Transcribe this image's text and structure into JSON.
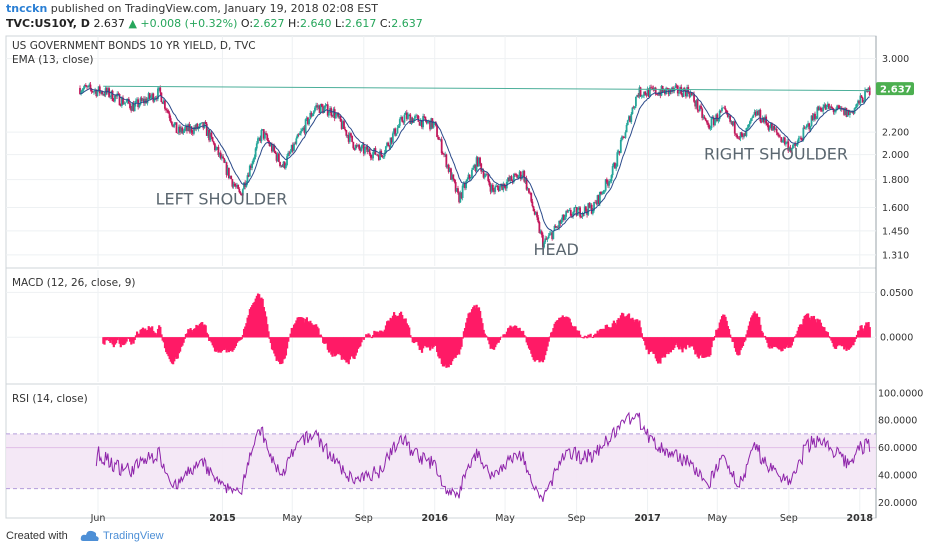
{
  "header": {
    "author": "tncckn",
    "published_text": "published on TradingView.com, January 19, 2018 02:08 EST",
    "symbol": "TVC:US10Y, D",
    "last": "2.637",
    "change": "+0.008 (+0.32%)",
    "o_label": "O:",
    "o_value": "2.627",
    "h_label": "H:",
    "h_value": "2.640",
    "l_label": "L:",
    "l_value": "2.617",
    "c_label": "C:",
    "c_value": "2.637"
  },
  "footer": {
    "created_with": "Created with",
    "brand": "TradingView"
  },
  "colors": {
    "candle_up": "#26a69a",
    "candle_down": "#c2185b",
    "ema": "#2b4a8a",
    "neckline": "#4caf9a",
    "macd": "#ff1a66",
    "rsi": "#8e24aa",
    "rsi_band": "#f3e5f5",
    "price_tag": "#4caf50"
  },
  "chart_data": [
    {
      "type": "candlestick",
      "title": "US GOVERNMENT BONDS 10 YR YIELD, D, TVC",
      "indicator": "EMA (13, close)",
      "y_ticks": [
        "3.000",
        "2.200",
        "2.000",
        "1.800",
        "1.600",
        "1.450",
        "1.310"
      ],
      "y_tick_values": [
        3.0,
        2.2,
        2.0,
        1.8,
        1.6,
        1.45,
        1.31
      ],
      "y_scale": "log",
      "ylim": [
        1.25,
        3.3
      ],
      "last_price_tag": "2.637",
      "x_ticks": [
        "Jun",
        "2015",
        "May",
        "Sep",
        "2016",
        "May",
        "Sep",
        "2017",
        "May",
        "Sep",
        "2018"
      ],
      "x_tick_dates": [
        "2014-06-01",
        "2015-01-01",
        "2015-05-01",
        "2015-09-01",
        "2016-01-01",
        "2016-05-01",
        "2016-09-01",
        "2017-01-01",
        "2017-05-01",
        "2017-09-01",
        "2018-01-01"
      ],
      "approx_close_path": [
        {
          "date": "2014-05-01",
          "close": 2.65
        },
        {
          "date": "2014-06-15",
          "close": 2.6
        },
        {
          "date": "2014-08-01",
          "close": 2.45
        },
        {
          "date": "2014-09-15",
          "close": 2.6
        },
        {
          "date": "2014-10-15",
          "close": 2.2
        },
        {
          "date": "2014-12-01",
          "close": 2.25
        },
        {
          "date": "2015-01-31",
          "close": 1.68
        },
        {
          "date": "2015-03-10",
          "close": 2.2
        },
        {
          "date": "2015-04-15",
          "close": 1.9
        },
        {
          "date": "2015-06-10",
          "close": 2.45
        },
        {
          "date": "2015-07-10",
          "close": 2.4
        },
        {
          "date": "2015-08-20",
          "close": 2.05
        },
        {
          "date": "2015-10-01",
          "close": 2.0
        },
        {
          "date": "2015-11-10",
          "close": 2.35
        },
        {
          "date": "2015-12-31",
          "close": 2.27
        },
        {
          "date": "2016-02-11",
          "close": 1.66
        },
        {
          "date": "2016-03-15",
          "close": 1.95
        },
        {
          "date": "2016-04-10",
          "close": 1.72
        },
        {
          "date": "2016-06-01",
          "close": 1.85
        },
        {
          "date": "2016-07-06",
          "close": 1.37
        },
        {
          "date": "2016-08-15",
          "close": 1.55
        },
        {
          "date": "2016-09-30",
          "close": 1.6
        },
        {
          "date": "2016-11-01",
          "close": 1.85
        },
        {
          "date": "2016-12-15",
          "close": 2.6
        },
        {
          "date": "2017-03-13",
          "close": 2.62
        },
        {
          "date": "2017-04-15",
          "close": 2.25
        },
        {
          "date": "2017-05-10",
          "close": 2.4
        },
        {
          "date": "2017-06-14",
          "close": 2.13
        },
        {
          "date": "2017-07-07",
          "close": 2.39
        },
        {
          "date": "2017-09-08",
          "close": 2.04
        },
        {
          "date": "2017-10-25",
          "close": 2.45
        },
        {
          "date": "2017-12-15",
          "close": 2.38
        },
        {
          "date": "2018-01-19",
          "close": 2.637
        }
      ],
      "annotations": [
        {
          "text": "LEFT SHOULDER",
          "date": "2015-01-15",
          "price": 1.62
        },
        {
          "text": "HEAD",
          "date": "2016-07-06",
          "price": 1.31
        },
        {
          "text": "RIGHT SHOULDER",
          "date": "2017-08-15",
          "price": 1.96
        }
      ],
      "neckline": {
        "start": {
          "date": "2014-06-10",
          "price": 2.67
        },
        "end": {
          "date": "2018-01-19",
          "price": 2.62
        }
      }
    },
    {
      "type": "histogram",
      "title": "MACD (12, 26, close, 9)",
      "y_ticks": [
        "0.0500",
        "0.0000"
      ],
      "y_tick_values": [
        0.05,
        0.0
      ],
      "ylim": [
        -0.05,
        0.075
      ]
    },
    {
      "type": "line",
      "title": "RSI (14, close)",
      "y_ticks": [
        "100.0000",
        "80.0000",
        "60.0000",
        "40.0000",
        "20.0000"
      ],
      "y_tick_values": [
        100,
        80,
        60,
        40,
        20
      ],
      "ylim": [
        10,
        105
      ],
      "band": [
        30,
        70
      ]
    }
  ]
}
